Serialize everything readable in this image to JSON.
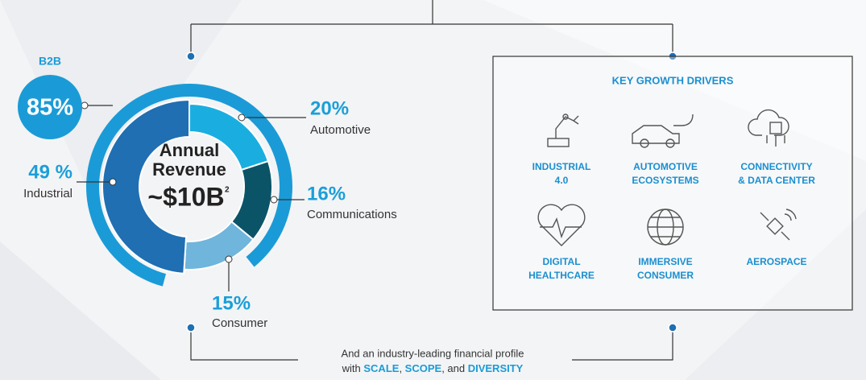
{
  "chart_data": {
    "type": "pie",
    "categories": [
      "Automotive",
      "Communications",
      "Consumer",
      "Industrial"
    ],
    "values": [
      20,
      16,
      15,
      49
    ],
    "value_labels": [
      "20%",
      "16%",
      "15%",
      "49 %"
    ],
    "colors": [
      "#1aaee0",
      "#0b5468",
      "#6fb5dc",
      "#1f6fb2"
    ],
    "center_label": [
      "Annual",
      "Revenue",
      "~$10B",
      "2"
    ],
    "outer_ring": {
      "name": "B2B",
      "value": 85,
      "value_label": "85%",
      "color": "#1a9bd7"
    }
  },
  "growth_drivers": {
    "title": "KEY GROWTH DRIVERS",
    "items": [
      [
        "INDUSTRIAL",
        "4.0"
      ],
      [
        "AUTOMOTIVE",
        "ECOSYSTEMS"
      ],
      [
        "CONNECTIVITY",
        "& DATA CENTER"
      ],
      [
        "DIGITAL",
        "HEALTHCARE"
      ],
      [
        "IMMERSIVE",
        "CONSUMER"
      ],
      [
        "AEROSPACE"
      ]
    ]
  },
  "footer": {
    "line1": "And an industry-leading financial profile",
    "line2": [
      "with ",
      "SCALE",
      ", ",
      "SCOPE",
      ", and ",
      "DIVERSITY"
    ]
  }
}
